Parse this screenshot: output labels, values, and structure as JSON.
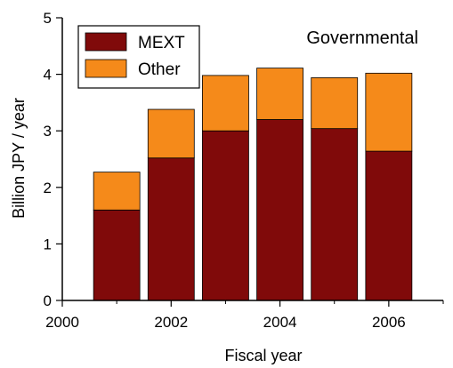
{
  "chart_data": {
    "type": "bar",
    "stacked": true,
    "annotation": "Governmental",
    "xlabel": "Fiscal year",
    "ylabel": "Billion JPY / year",
    "xlim": [
      2000,
      2007
    ],
    "ylim": [
      0,
      5
    ],
    "x_ticks": [
      "2000",
      "2002",
      "2004",
      "2006"
    ],
    "y_ticks": [
      "0",
      "1",
      "2",
      "3",
      "4",
      "5"
    ],
    "x": [
      2001,
      2002,
      2003,
      2004,
      2005,
      2006
    ],
    "series": [
      {
        "name": "MEXT",
        "color": "#800a0a",
        "values": [
          1.6,
          2.52,
          3.0,
          3.2,
          3.04,
          2.64
        ]
      },
      {
        "name": "Other",
        "color": "#f58a1a",
        "values": [
          0.67,
          0.86,
          0.98,
          0.91,
          0.9,
          1.38
        ]
      }
    ],
    "legend_position": "top-left",
    "grid": false
  }
}
